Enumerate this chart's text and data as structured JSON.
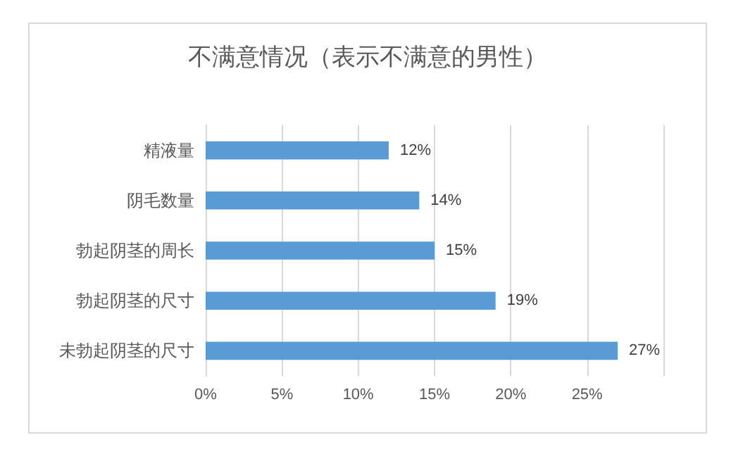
{
  "chart_data": {
    "type": "bar",
    "orientation": "horizontal",
    "title": "不满意情况（表示不满意的男性）",
    "categories": [
      "精液量",
      "阴毛数量",
      "勃起阴茎的周长",
      "勃起阴茎的尺寸",
      "未勃起阴茎的尺寸"
    ],
    "values": [
      12,
      14,
      15,
      19,
      27
    ],
    "value_labels": [
      "12%",
      "14%",
      "15%",
      "19%",
      "27%"
    ],
    "color": "#5b9bd5",
    "xlim": [
      0,
      30
    ],
    "xticks": [
      {
        "value": 0,
        "label": "0%"
      },
      {
        "value": 5,
        "label": "5%"
      },
      {
        "value": 10,
        "label": "10%"
      },
      {
        "value": 15,
        "label": "15%"
      },
      {
        "value": 20,
        "label": "20%"
      },
      {
        "value": 25,
        "label": "25%"
      },
      {
        "value": 30,
        "label": null
      }
    ],
    "grid": "x"
  }
}
